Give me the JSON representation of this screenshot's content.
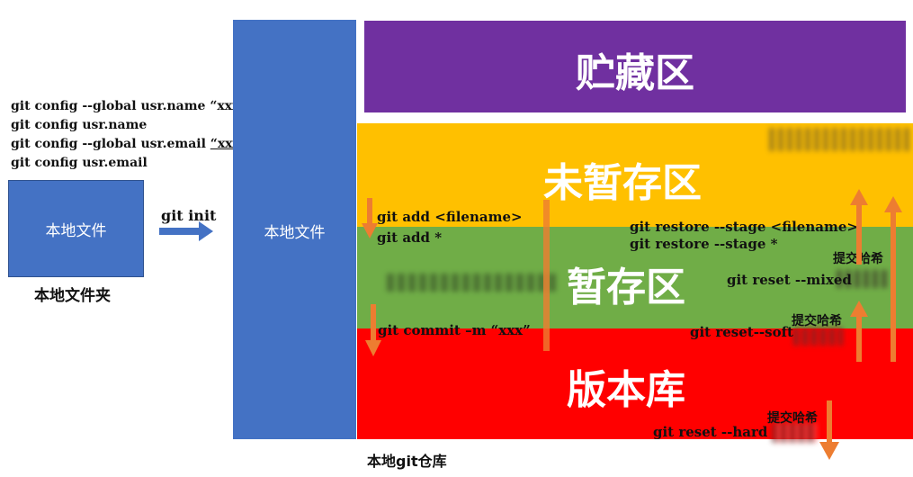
{
  "config_commands": [
    "git config --global usr.name “xxx”",
    "git config usr.name",
    "git config --global usr.email “xxx@xxx.xxx”",
    "git config usr.email"
  ],
  "local_file_box": "本地文件",
  "local_folder_label": "本地文件夹",
  "git_init_label": "git init",
  "repo_column_label": "本地文件",
  "repo_caption": "本地git仓库",
  "zones": {
    "stash": "贮藏区",
    "unstaged": "未暂存区",
    "staged": "暂存区",
    "repo": "版本库"
  },
  "commands": {
    "add_file": "git add <filename>",
    "add_all": "git add *",
    "commit": "git commit –m “xxx”",
    "restore_file": "git restore --stage <filename>",
    "restore_all": "git restore --stage *",
    "reset_mixed": "git reset --mixed",
    "reset_soft": "git reset--soft",
    "reset_hard": "git reset --hard"
  },
  "hash_labels": {
    "mixed": "提交哈希",
    "soft": "提交哈希",
    "hard": "提交哈希"
  },
  "colors": {
    "blue": "#4472c4",
    "purple": "#7030a0",
    "yellow": "#ffc000",
    "green": "#70ad47",
    "red": "#ff0000",
    "orange_arrow": "#ed7d31"
  }
}
